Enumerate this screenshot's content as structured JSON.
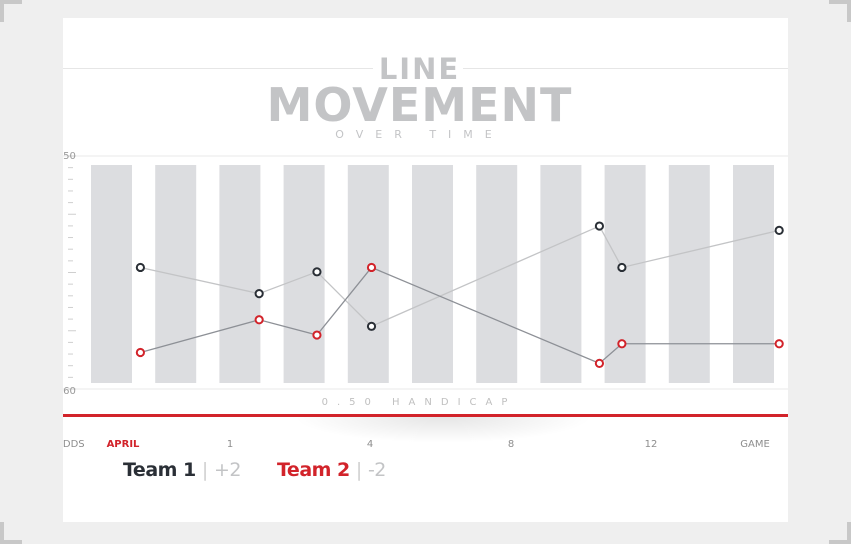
{
  "title": {
    "line1": "LINE",
    "line2": "MOVEMENT",
    "line3": "OVER TIME"
  },
  "chart_data": {
    "type": "line",
    "y_top_label": ".50",
    "y_bottom_label": ".60",
    "x_caption": "0.50 HANDICAP",
    "x_ticks": [
      {
        "label": "ODDS",
        "x": 0
      },
      {
        "label": "APRIL",
        "x": 1,
        "active": true
      },
      {
        "label": "1",
        "x": 3
      },
      {
        "label": "4",
        "x": 5.5
      },
      {
        "label": "8",
        "x": 8
      },
      {
        "label": "12",
        "x": 10.5
      },
      {
        "label": "GAME",
        "x": 12.5
      }
    ],
    "columns": 11,
    "series": [
      {
        "color": "#2a2f36",
        "points": [
          {
            "x": 1.45,
            "y": 0.53
          },
          {
            "x": 3.3,
            "y": 0.41
          },
          {
            "x": 4.2,
            "y": 0.51
          },
          {
            "x": 5.05,
            "y": 0.26
          },
          {
            "x": 8.6,
            "y": 0.72
          },
          {
            "x": 8.95,
            "y": 0.53
          },
          {
            "x": 11.4,
            "y": 0.7
          }
        ]
      },
      {
        "color": "#d2232a",
        "points": [
          {
            "x": 1.45,
            "y": 0.14
          },
          {
            "x": 3.3,
            "y": 0.29
          },
          {
            "x": 4.2,
            "y": 0.22
          },
          {
            "x": 5.05,
            "y": 0.53
          },
          {
            "x": 8.6,
            "y": 0.09
          },
          {
            "x": 8.95,
            "y": 0.18
          },
          {
            "x": 11.4,
            "y": 0.18
          }
        ]
      }
    ]
  },
  "legend": {
    "team1": {
      "name": "Team 1",
      "odds": "+2",
      "color": "#2a2f36"
    },
    "team2": {
      "name": "Team 2",
      "odds": "-2",
      "color": "#d2232a"
    }
  },
  "colors": {
    "accent": "#d2232a",
    "column": "#dcdde0",
    "title": "#c3c4c6"
  }
}
